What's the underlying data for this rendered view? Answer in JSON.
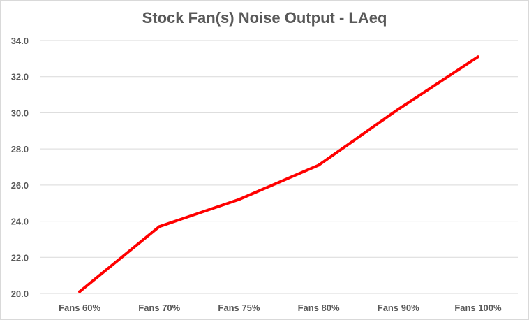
{
  "chart_data": {
    "type": "line",
    "title": "Stock Fan(s) Noise Output - LAeq",
    "xlabel": "",
    "ylabel": "",
    "categories": [
      "Fans 60%",
      "Fans 70%",
      "Fans 75%",
      "Fans 80%",
      "Fans 90%",
      "Fans 100%"
    ],
    "series": [
      {
        "values": [
          20.1,
          23.7,
          25.2,
          27.1,
          30.2,
          33.1
        ],
        "color": "#ff0000"
      }
    ],
    "ylim": [
      20.0,
      34.0
    ],
    "yticks": [
      "20.0",
      "22.0",
      "24.0",
      "26.0",
      "28.0",
      "30.0",
      "32.0",
      "34.0"
    ],
    "grid": true,
    "legend": "none"
  }
}
